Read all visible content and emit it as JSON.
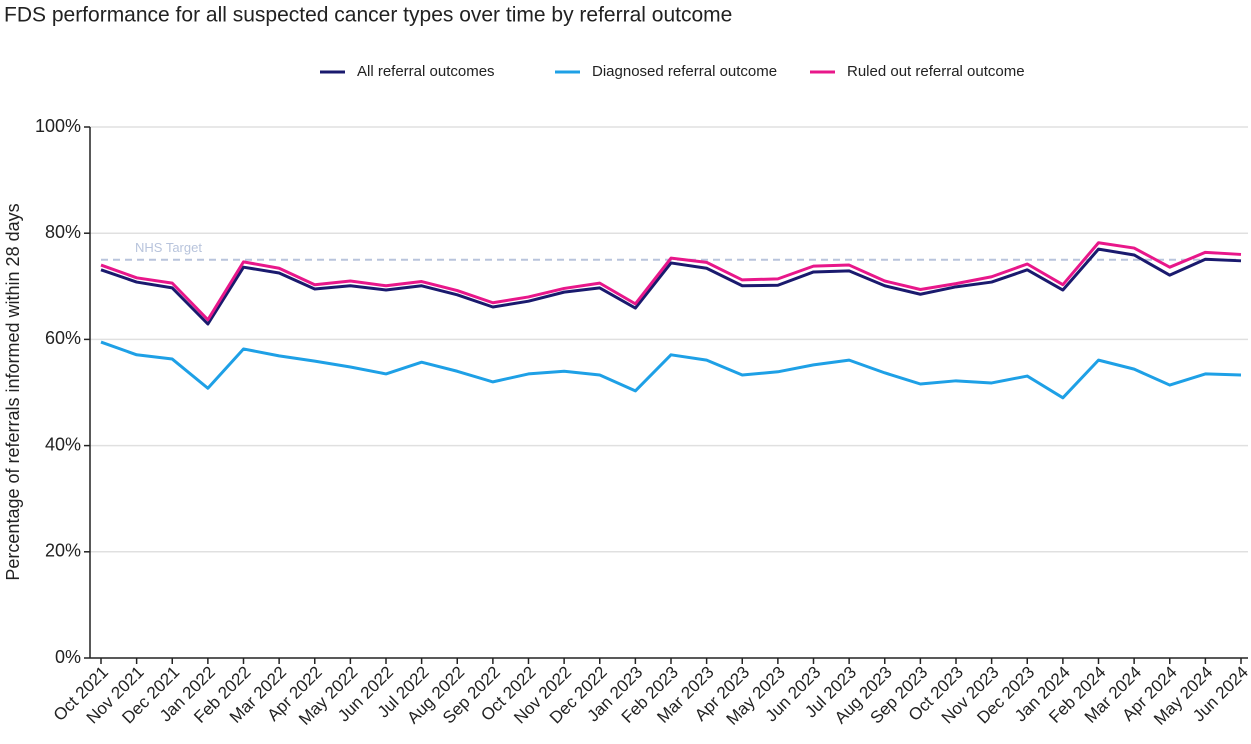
{
  "chart_data": {
    "type": "line",
    "title": "FDS performance for all suspected cancer types over time by referral outcome",
    "y_label": "Percentage of referrals informed within 28 days",
    "categories": [
      "Oct 2021",
      "Nov 2021",
      "Dec 2021",
      "Jan 2022",
      "Feb 2022",
      "Mar 2022",
      "Apr 2022",
      "May 2022",
      "Jun 2022",
      "Jul 2022",
      "Aug 2022",
      "Sep 2022",
      "Oct 2022",
      "Nov 2022",
      "Dec 2022",
      "Jan 2023",
      "Feb 2023",
      "Mar 2023",
      "Apr 2023",
      "May 2023",
      "Jun 2023",
      "Jul 2023",
      "Aug 2023",
      "Sep 2023",
      "Oct 2023",
      "Nov 2023",
      "Dec 2023",
      "Jan 2024",
      "Feb 2024",
      "Mar 2024",
      "Apr 2024",
      "May 2024",
      "Jun 2024"
    ],
    "series": [
      {
        "name": "All referral outcomes",
        "color": "#1a1a6e",
        "values": [
          73.1,
          70.8,
          69.7,
          62.9,
          73.6,
          72.5,
          69.5,
          70.1,
          69.3,
          70.1,
          68.4,
          66.1,
          67.2,
          68.9,
          69.7,
          65.9,
          74.4,
          73.4,
          70.1,
          70.2,
          72.7,
          72.9,
          70.1,
          68.5,
          69.9,
          70.8,
          73.1,
          69.3,
          77.0,
          75.9,
          72.1,
          75.1,
          74.8
        ]
      },
      {
        "name": "Diagnosed referral outcome",
        "color": "#1ea0e6",
        "values": [
          59.5,
          57.1,
          56.3,
          50.8,
          58.2,
          56.9,
          55.9,
          54.8,
          53.5,
          55.7,
          54.0,
          52.0,
          53.5,
          54.0,
          53.3,
          50.3,
          57.1,
          56.1,
          53.3,
          53.9,
          55.2,
          56.1,
          53.7,
          51.6,
          52.2,
          51.8,
          53.1,
          49.0,
          56.1,
          54.4,
          51.4,
          53.5,
          53.3
        ]
      },
      {
        "name": "Ruled out referral outcome",
        "color": "#e8178a",
        "values": [
          74.0,
          71.6,
          70.6,
          63.7,
          74.6,
          73.4,
          70.3,
          71.0,
          70.1,
          70.9,
          69.2,
          66.9,
          68.0,
          69.6,
          70.6,
          66.7,
          75.3,
          74.5,
          71.2,
          71.4,
          73.8,
          74.0,
          71.0,
          69.4,
          70.5,
          71.8,
          74.2,
          70.3,
          78.2,
          77.2,
          73.6,
          76.4,
          76.0
        ]
      }
    ],
    "target": {
      "value": 75,
      "label": "NHS Target",
      "color": "#b8c4dc"
    },
    "ylim": [
      0,
      100
    ],
    "yticks": [
      {
        "value": 0,
        "label": "0%"
      },
      {
        "value": 20,
        "label": "20%"
      },
      {
        "value": 40,
        "label": "40%"
      },
      {
        "value": 60,
        "label": "60%"
      },
      {
        "value": 80,
        "label": "80%"
      },
      {
        "value": 100,
        "label": "100%"
      }
    ],
    "grid": true,
    "legend": "top"
  }
}
